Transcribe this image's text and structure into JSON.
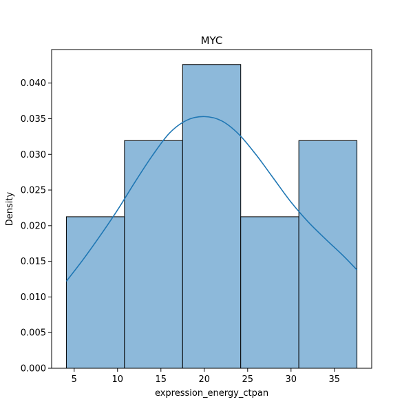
{
  "chart_data": {
    "type": "bar",
    "title": "MYC",
    "xlabel": "expression_energy_ctpan",
    "ylabel": "Density",
    "bins": [
      {
        "x0": 4.1,
        "x1": 10.8,
        "density": 0.02125
      },
      {
        "x0": 10.8,
        "x1": 17.5,
        "density": 0.03193
      },
      {
        "x0": 17.5,
        "x1": 24.2,
        "density": 0.0426
      },
      {
        "x0": 24.2,
        "x1": 30.9,
        "density": 0.02125
      },
      {
        "x0": 30.9,
        "x1": 37.6,
        "density": 0.03193
      }
    ],
    "kde": {
      "x": [
        4.1,
        6,
        8,
        10,
        12,
        14,
        16,
        18,
        20,
        22,
        24,
        26,
        28,
        30,
        32,
        34,
        36,
        37.6
      ],
      "y": [
        0.0122,
        0.0152,
        0.0186,
        0.0222,
        0.0261,
        0.0298,
        0.033,
        0.0348,
        0.0353,
        0.0347,
        0.0328,
        0.0299,
        0.0266,
        0.0233,
        0.0205,
        0.0181,
        0.0158,
        0.0138
      ]
    },
    "xlim": [
      2.4,
      39.3
    ],
    "ylim": [
      0,
      0.0447
    ],
    "xticks": [
      5,
      10,
      15,
      20,
      25,
      30,
      35
    ],
    "xtick_labels": [
      "5",
      "10",
      "15",
      "20",
      "25",
      "30",
      "35"
    ],
    "yticks": [
      0,
      0.005,
      0.01,
      0.015,
      0.02,
      0.025,
      0.03,
      0.035,
      0.04
    ],
    "ytick_labels": [
      "0.000",
      "0.005",
      "0.010",
      "0.015",
      "0.020",
      "0.025",
      "0.030",
      "0.035",
      "0.040"
    ],
    "grid": false,
    "legend": "none",
    "colors": {
      "bar_fill": "#8db9da",
      "bar_edge": "#000000",
      "kde_line": "#1f77b4"
    }
  }
}
